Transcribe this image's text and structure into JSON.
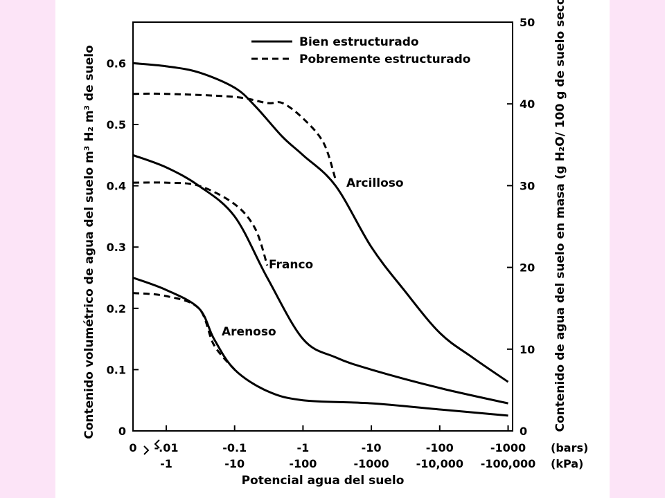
{
  "chart_data": {
    "type": "line",
    "xlabel": "Potencial agua del suelo",
    "ylabel_left": "Contenido volumétrico de agua del suelo m³ H₂ m³ de suelo",
    "ylabel_right": "Contenido de agua del suelo en masa (g H₂O/ 100 g de suelo seco",
    "x_scale": "symlog",
    "x_tick_labels_bars": [
      "0",
      "-.01",
      "-0.1",
      "-1",
      "-10",
      "-100",
      "-1000"
    ],
    "x_tick_labels_kpa": [
      "-1",
      "-10",
      "-100",
      "-1000",
      "-10,000",
      "-100,000"
    ],
    "x_unit_bars": "(bars)",
    "x_unit_kpa": "(kPa)",
    "y_left_ticks": [
      "0",
      "0.1",
      "0.2",
      "0.3",
      "0.4",
      "0.5",
      "0.6"
    ],
    "y_left_range": [
      0,
      0.68
    ],
    "y_right_ticks": [
      "0",
      "10",
      "20",
      "30",
      "40",
      "50"
    ],
    "y_right_range": [
      0,
      50
    ],
    "legend": [
      {
        "label": "Bien estructurado",
        "style": "solid"
      },
      {
        "label": "Pobremente estructurado",
        "style": "dashed"
      }
    ],
    "legend_position": "top-right",
    "series": [
      {
        "name": "Arcilloso",
        "structure": "solid",
        "x": [
          0,
          -0.01,
          -0.03,
          -0.1,
          -0.2,
          -0.5,
          -1,
          -3,
          -10,
          -30,
          -100,
          -300,
          -1000
        ],
        "y": [
          0.6,
          0.595,
          0.585,
          0.56,
          0.53,
          0.48,
          0.45,
          0.4,
          0.3,
          0.23,
          0.16,
          0.12,
          0.08
        ]
      },
      {
        "name": "Arcilloso",
        "structure": "dashed",
        "x": [
          0,
          -0.01,
          -0.1,
          -0.3,
          -0.5,
          -1,
          -2,
          -3
        ],
        "y": [
          0.55,
          0.55,
          0.545,
          0.535,
          0.535,
          0.51,
          0.47,
          0.41
        ]
      },
      {
        "name": "Franco",
        "structure": "solid",
        "x": [
          0,
          -0.01,
          -0.03,
          -0.1,
          -0.3,
          -1,
          -3,
          -10,
          -100,
          -1000
        ],
        "y": [
          0.45,
          0.43,
          0.4,
          0.35,
          0.25,
          0.15,
          0.12,
          0.1,
          0.07,
          0.045
        ]
      },
      {
        "name": "Franco",
        "structure": "dashed",
        "x": [
          0,
          -0.01,
          -0.03,
          -0.1,
          -0.2,
          -0.3
        ],
        "y": [
          0.405,
          0.405,
          0.4,
          0.37,
          0.33,
          0.27
        ]
      },
      {
        "name": "Arenoso",
        "structure": "solid",
        "x": [
          0,
          -0.01,
          -0.03,
          -0.05,
          -0.1,
          -0.3,
          -1,
          -10,
          -100,
          -1000
        ],
        "y": [
          0.25,
          0.23,
          0.2,
          0.15,
          0.1,
          0.065,
          0.05,
          0.045,
          0.035,
          0.025
        ]
      },
      {
        "name": "Arenoso",
        "structure": "dashed",
        "x": [
          0,
          -0.01,
          -0.03,
          -0.05,
          -0.1
        ],
        "y": [
          0.225,
          0.22,
          0.2,
          0.14,
          0.1
        ]
      }
    ],
    "curve_labels": [
      "Arcilloso",
      "Franco",
      "Arenoso"
    ]
  }
}
